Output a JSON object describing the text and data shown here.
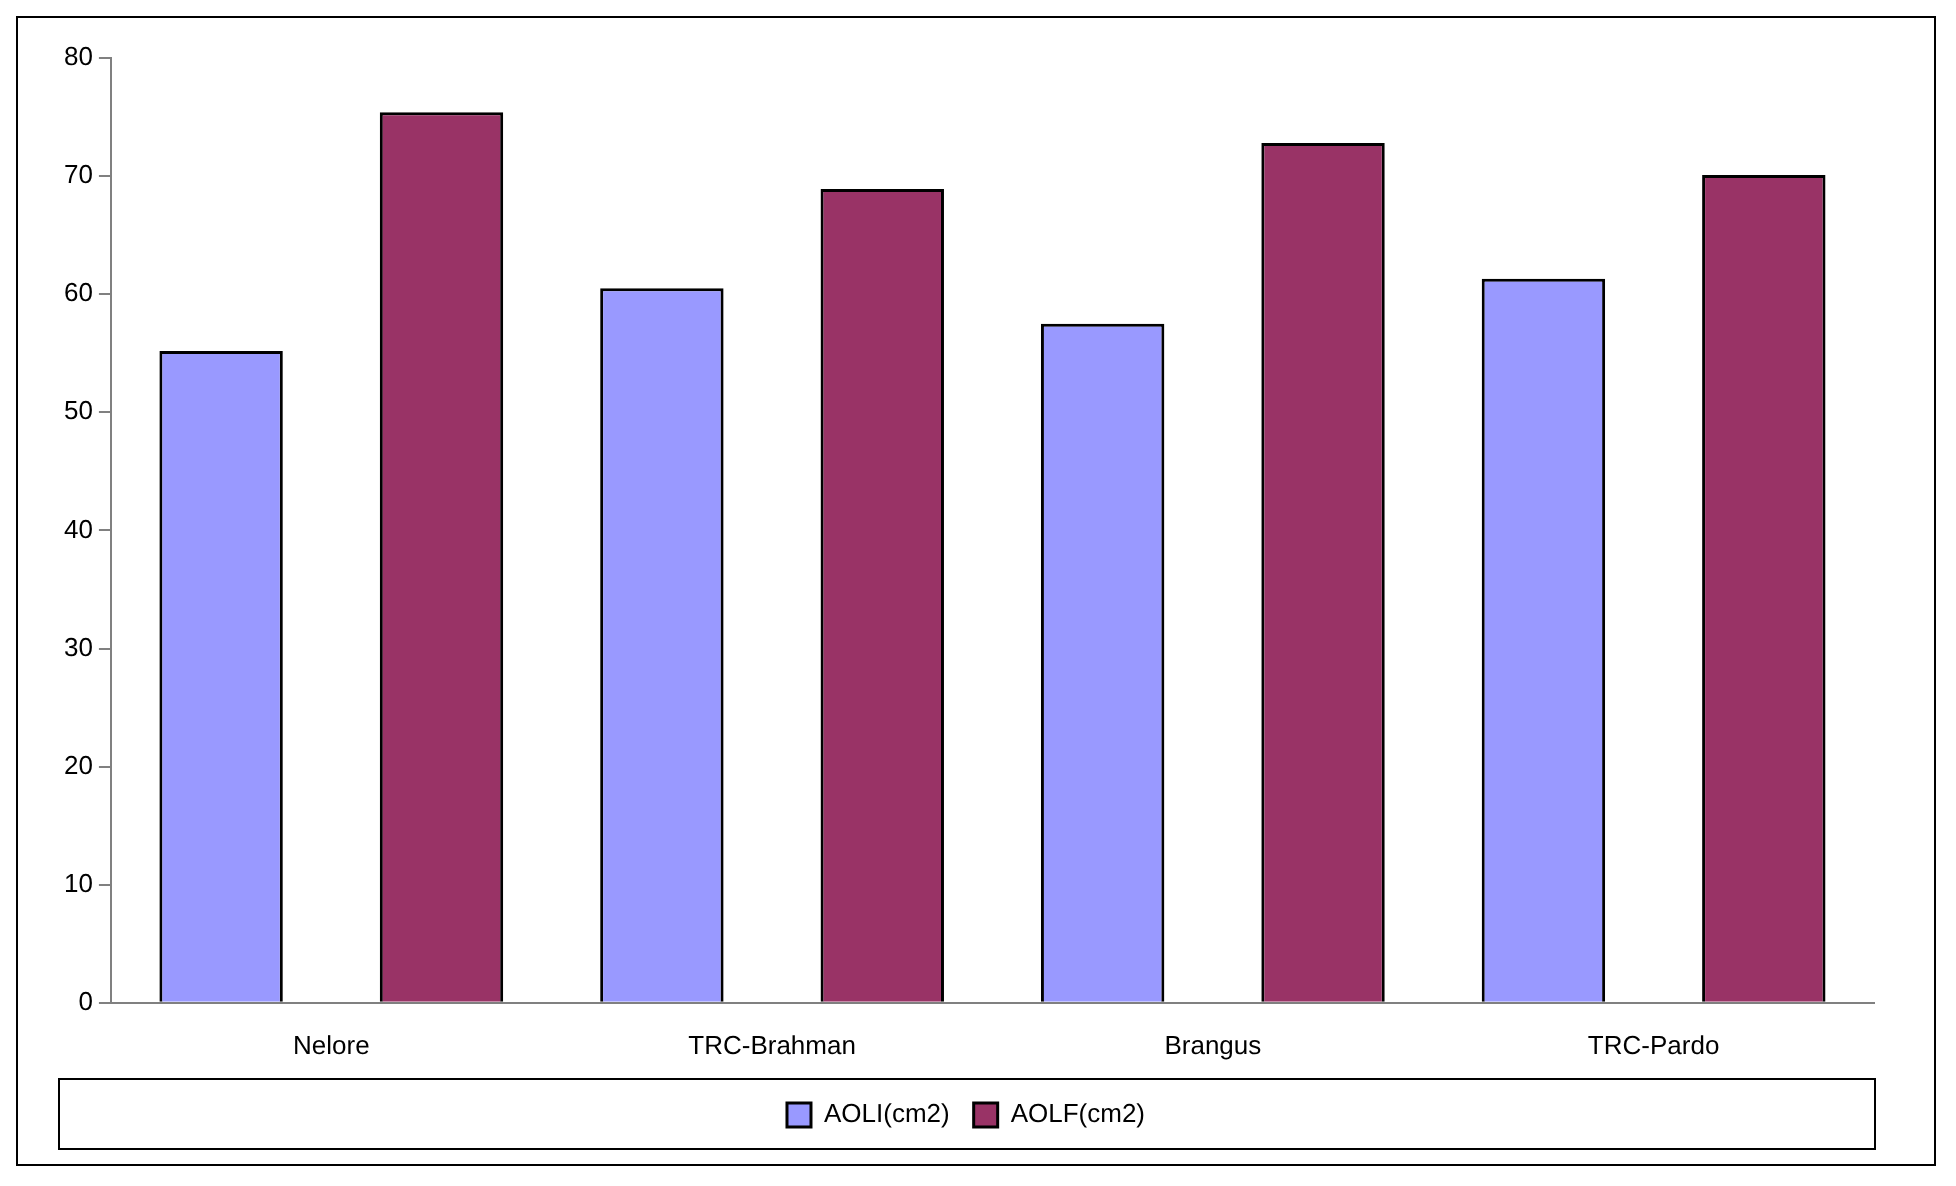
{
  "chart_data": {
    "type": "bar",
    "categories": [
      "Nelore",
      "TRC-Brahman",
      "Brangus",
      "TRC-Pardo"
    ],
    "series": [
      {
        "name": "AOLI(cm2)",
        "color": "#9999ff",
        "values": [
          55.2,
          60.5,
          57.5,
          61.3
        ]
      },
      {
        "name": "AOLF(cm2)",
        "color": "#993366",
        "values": [
          75.4,
          68.9,
          72.8,
          70.1
        ]
      }
    ],
    "ylim": [
      0,
      80
    ],
    "yticks": [
      0,
      10,
      20,
      30,
      40,
      50,
      60,
      70,
      80
    ],
    "grid": false,
    "legend": "bottom"
  }
}
